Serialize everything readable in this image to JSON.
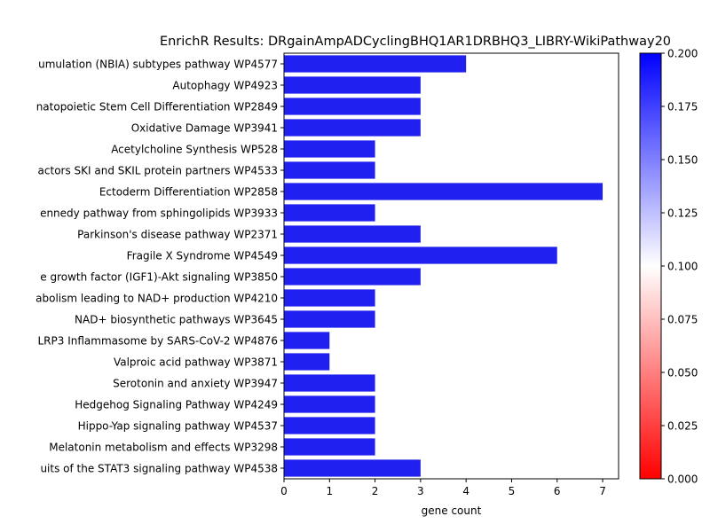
{
  "chart_data": {
    "type": "bar",
    "orientation": "horizontal",
    "title": "EnrichR Results: DRgainAmpADCyclingBHQ1AR1DRBHQ3_LIBRY-WikiPathway20",
    "xlabel": "gene count",
    "ylabel": "",
    "xlim": [
      0,
      7.35
    ],
    "x_ticks": [
      0,
      1,
      2,
      3,
      4,
      5,
      6,
      7
    ],
    "grid": false,
    "bar_color": "#2020f0",
    "categories": [
      "umulation (NBIA) subtypes pathway WP4577",
      "Autophagy WP4923",
      "natopoietic Stem Cell Differentiation WP2849",
      "Oxidative Damage WP3941",
      "Acetylcholine Synthesis WP528",
      "actors SKI and SKIL protein partners WP4533",
      "Ectoderm Differentiation WP2858",
      "ennedy pathway from sphingolipids WP3933",
      "Parkinson's disease pathway WP2371",
      "Fragile X Syndrome  WP4549",
      "e growth factor (IGF1)-Akt signaling WP3850",
      "abolism leading to NAD+ production WP4210",
      "NAD+ biosynthetic pathways WP3645",
      "LRP3 Inflammasome by SARS-CoV-2 WP4876",
      "Valproic acid pathway WP3871",
      "Serotonin and anxiety WP3947",
      "Hedgehog Signaling Pathway WP4249",
      "Hippo-Yap signaling pathway WP4537",
      "Melatonin metabolism and effects WP3298",
      "uits of the STAT3 signaling pathway WP4538"
    ],
    "values": [
      4,
      3,
      3,
      3,
      2,
      2,
      7,
      2,
      3,
      6,
      3,
      2,
      2,
      1,
      1,
      2,
      2,
      2,
      2,
      3
    ],
    "colorbar": {
      "min": 0.0,
      "max": 0.2,
      "ticks": [
        "0.000",
        "0.025",
        "0.050",
        "0.075",
        "0.100",
        "0.125",
        "0.150",
        "0.175",
        "0.200"
      ],
      "colors": [
        "#ff0000",
        "#ffffff",
        "#0000ff"
      ]
    }
  }
}
